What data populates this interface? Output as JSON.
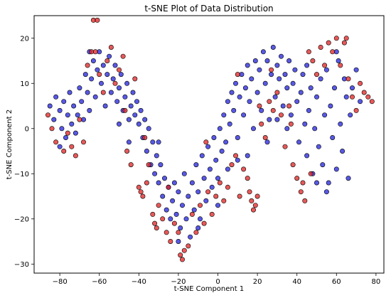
{
  "chart_data": {
    "type": "scatter",
    "title": "t-SNE Plot of Data Distribution",
    "xlabel": "t-SNE Component 1",
    "ylabel": "t-SNE Component 2",
    "xlim": [
      -93,
      84
    ],
    "ylim": [
      -32,
      25
    ],
    "xticks": [
      -80,
      -60,
      -40,
      -20,
      0,
      20,
      40,
      60,
      80
    ],
    "yticks": [
      -30,
      -20,
      -10,
      0,
      10,
      20
    ],
    "grid": false,
    "legend": "none",
    "point_style": {
      "edge_color": "#000000",
      "alpha": 0.75
    },
    "series": [
      {
        "color": "#2020dd",
        "points": [
          [
            -85,
            5
          ],
          [
            -83,
            2
          ],
          [
            -82,
            7
          ],
          [
            -80,
            4
          ],
          [
            -79,
            0
          ],
          [
            -78,
            6
          ],
          [
            -77,
            -2
          ],
          [
            -76,
            3
          ],
          [
            -75,
            8
          ],
          [
            -74,
            1
          ],
          [
            -73,
            5
          ],
          [
            -72,
            -1
          ],
          [
            -71,
            3
          ],
          [
            -70,
            9
          ],
          [
            -69,
            6
          ],
          [
            -68,
            2
          ],
          [
            -67,
            12
          ],
          [
            -66,
            8
          ],
          [
            -65,
            4
          ],
          [
            -64,
            11
          ],
          [
            -63,
            15
          ],
          [
            -62,
            7
          ],
          [
            -61,
            13
          ],
          [
            -60,
            17
          ],
          [
            -59,
            10
          ],
          [
            -58,
            14
          ],
          [
            -57,
            5
          ],
          [
            -56,
            12
          ],
          [
            -55,
            16
          ],
          [
            -54,
            8
          ],
          [
            -53,
            11
          ],
          [
            -52,
            14
          ],
          [
            -51,
            6
          ],
          [
            -50,
            9
          ],
          [
            -49,
            12
          ],
          [
            -48,
            4
          ],
          [
            -47,
            7
          ],
          [
            -46,
            10
          ],
          [
            -45,
            2
          ],
          [
            -44,
            5
          ],
          [
            -43,
            8
          ],
          [
            -42,
            3
          ],
          [
            -41,
            6
          ],
          [
            -40,
            1
          ],
          [
            -39,
            4
          ],
          [
            -38,
            -2
          ],
          [
            -37,
            2
          ],
          [
            -36,
            -5
          ],
          [
            -35,
            0
          ],
          [
            -34,
            -8
          ],
          [
            -33,
            -3
          ],
          [
            -32,
            -10
          ],
          [
            -31,
            -6
          ],
          [
            -30,
            -12
          ],
          [
            -29,
            -8
          ],
          [
            -28,
            -15
          ],
          [
            -27,
            -11
          ],
          [
            -26,
            -18
          ],
          [
            -25,
            -13
          ],
          [
            -24,
            -20
          ],
          [
            -23,
            -16
          ],
          [
            -22,
            -12
          ],
          [
            -21,
            -19
          ],
          [
            -20,
            -14
          ],
          [
            -19,
            -22
          ],
          [
            -18,
            -17
          ],
          [
            -17,
            -10
          ],
          [
            -16,
            -20
          ],
          [
            -15,
            -15
          ],
          [
            -14,
            -24
          ],
          [
            -13,
            -12
          ],
          [
            -12,
            -18
          ],
          [
            -11,
            -8
          ],
          [
            -10,
            -14
          ],
          [
            -9,
            -20
          ],
          [
            -8,
            -6
          ],
          [
            -7,
            -11
          ],
          [
            -6,
            -16
          ],
          [
            -5,
            -4
          ],
          [
            -4,
            -9
          ],
          [
            -3,
            -13
          ],
          [
            -2,
            -2
          ],
          [
            -1,
            -7
          ],
          [
            0,
            -11
          ],
          [
            1,
            0
          ],
          [
            2,
            -5
          ],
          [
            3,
            3
          ],
          [
            4,
            -3
          ],
          [
            5,
            6
          ],
          [
            6,
            1
          ],
          [
            7,
            8
          ],
          [
            8,
            4
          ],
          [
            9,
            10
          ],
          [
            10,
            -2
          ],
          [
            11,
            7
          ],
          [
            12,
            12
          ],
          [
            13,
            3
          ],
          [
            14,
            9
          ],
          [
            15,
            14
          ],
          [
            16,
            6
          ],
          [
            17,
            11
          ],
          [
            18,
            0
          ],
          [
            19,
            15
          ],
          [
            20,
            8
          ],
          [
            21,
            13
          ],
          [
            22,
            4
          ],
          [
            23,
            17
          ],
          [
            24,
            10
          ],
          [
            25,
            15
          ],
          [
            26,
            2
          ],
          [
            27,
            12
          ],
          [
            28,
            18
          ],
          [
            29,
            7
          ],
          [
            30,
            14
          ],
          [
            31,
            11
          ],
          [
            32,
            16
          ],
          [
            33,
            5
          ],
          [
            34,
            12
          ],
          [
            35,
            9
          ],
          [
            36,
            15
          ],
          [
            37,
            3
          ],
          [
            38,
            10
          ],
          [
            39,
            13
          ],
          [
            40,
            6
          ],
          [
            41,
            -3
          ],
          [
            42,
            8
          ],
          [
            43,
            12
          ],
          [
            44,
            1
          ],
          [
            45,
            -6
          ],
          [
            46,
            4
          ],
          [
            47,
            9
          ],
          [
            48,
            -10
          ],
          [
            49,
            0
          ],
          [
            50,
            7
          ],
          [
            51,
            -4
          ],
          [
            52,
            11
          ],
          [
            53,
            -8
          ],
          [
            54,
            3
          ],
          [
            55,
            13
          ],
          [
            56,
            -12
          ],
          [
            57,
            5
          ],
          [
            58,
            -2
          ],
          [
            59,
            9
          ],
          [
            60,
            -9
          ],
          [
            61,
            15
          ],
          [
            62,
            1
          ],
          [
            63,
            -5
          ],
          [
            64,
            11
          ],
          [
            65,
            7
          ],
          [
            66,
            -11
          ],
          [
            67,
            3
          ],
          [
            68,
            9
          ],
          [
            70,
            13
          ],
          [
            72,
            6
          ],
          [
            -80,
            -4
          ],
          [
            -65,
            17
          ],
          [
            -50,
            1
          ],
          [
            -45,
            -3
          ],
          [
            -30,
            -3
          ],
          [
            -20,
            -25
          ],
          [
            -10,
            -22
          ],
          [
            0,
            -17
          ],
          [
            5,
            -9
          ],
          [
            10,
            -7
          ],
          [
            15,
            -6
          ],
          [
            25,
            -3
          ],
          [
            30,
            2
          ],
          [
            35,
            0
          ],
          [
            45,
            14
          ],
          [
            50,
            -12
          ],
          [
            55,
            -14
          ],
          [
            60,
            17
          ]
        ]
      },
      {
        "color": "#e02020",
        "points": [
          [
            -86,
            3
          ],
          [
            -84,
            0
          ],
          [
            -82,
            -3
          ],
          [
            -78,
            -5
          ],
          [
            -76,
            -1
          ],
          [
            -72,
            -6
          ],
          [
            -70,
            2
          ],
          [
            -68,
            -3
          ],
          [
            -66,
            14
          ],
          [
            -64,
            17
          ],
          [
            -63,
            24
          ],
          [
            -61,
            24
          ],
          [
            -60,
            12
          ],
          [
            -58,
            8
          ],
          [
            -56,
            15
          ],
          [
            -54,
            18
          ],
          [
            -52,
            10
          ],
          [
            -50,
            13
          ],
          [
            -48,
            16
          ],
          [
            -46,
            -5
          ],
          [
            -44,
            -8
          ],
          [
            -42,
            11
          ],
          [
            -40,
            -13
          ],
          [
            -39,
            -14
          ],
          [
            -38,
            -15
          ],
          [
            -37,
            -2
          ],
          [
            -36,
            -12
          ],
          [
            -35,
            -8
          ],
          [
            -33,
            -19
          ],
          [
            -32,
            -21
          ],
          [
            -31,
            -22
          ],
          [
            -30,
            -17
          ],
          [
            -28,
            -20
          ],
          [
            -26,
            -23
          ],
          [
            -24,
            -25
          ],
          [
            -22,
            -21
          ],
          [
            -20,
            -23
          ],
          [
            -19,
            -28
          ],
          [
            -18,
            -29
          ],
          [
            -17,
            -27
          ],
          [
            -15,
            -26
          ],
          [
            -13,
            -19
          ],
          [
            -11,
            -23
          ],
          [
            -9,
            -17
          ],
          [
            -7,
            -21
          ],
          [
            -5,
            -14
          ],
          [
            -3,
            -19
          ],
          [
            -1,
            -15
          ],
          [
            1,
            -12
          ],
          [
            3,
            -16
          ],
          [
            5,
            -13
          ],
          [
            7,
            -8
          ],
          [
            9,
            -6
          ],
          [
            11,
            -15
          ],
          [
            13,
            -9
          ],
          [
            15,
            -11
          ],
          [
            16,
            -14
          ],
          [
            17,
            -16
          ],
          [
            18,
            -18
          ],
          [
            19,
            -17
          ],
          [
            20,
            -15
          ],
          [
            21,
            5
          ],
          [
            22,
            1
          ],
          [
            24,
            -2
          ],
          [
            26,
            6
          ],
          [
            28,
            4
          ],
          [
            30,
            8
          ],
          [
            32,
            3
          ],
          [
            34,
            -4
          ],
          [
            36,
            5
          ],
          [
            38,
            -8
          ],
          [
            40,
            -11
          ],
          [
            42,
            -14
          ],
          [
            43,
            -12
          ],
          [
            44,
            -16
          ],
          [
            46,
            17
          ],
          [
            48,
            15
          ],
          [
            50,
            12
          ],
          [
            52,
            18
          ],
          [
            54,
            14
          ],
          [
            56,
            19
          ],
          [
            58,
            17
          ],
          [
            60,
            20
          ],
          [
            62,
            14
          ],
          [
            64,
            19
          ],
          [
            65,
            20
          ],
          [
            66,
            11
          ],
          [
            68,
            7
          ],
          [
            70,
            4
          ],
          [
            72,
            10
          ],
          [
            74,
            8
          ],
          [
            76,
            7
          ],
          [
            78,
            6
          ],
          [
            -74,
            -4
          ],
          [
            -62,
            17
          ],
          [
            -47,
            4
          ],
          [
            -25,
            -13
          ],
          [
            -6,
            -3
          ],
          [
            10,
            12
          ],
          [
            27,
            13
          ],
          [
            37,
            1
          ],
          [
            47,
            -10
          ]
        ]
      }
    ]
  }
}
